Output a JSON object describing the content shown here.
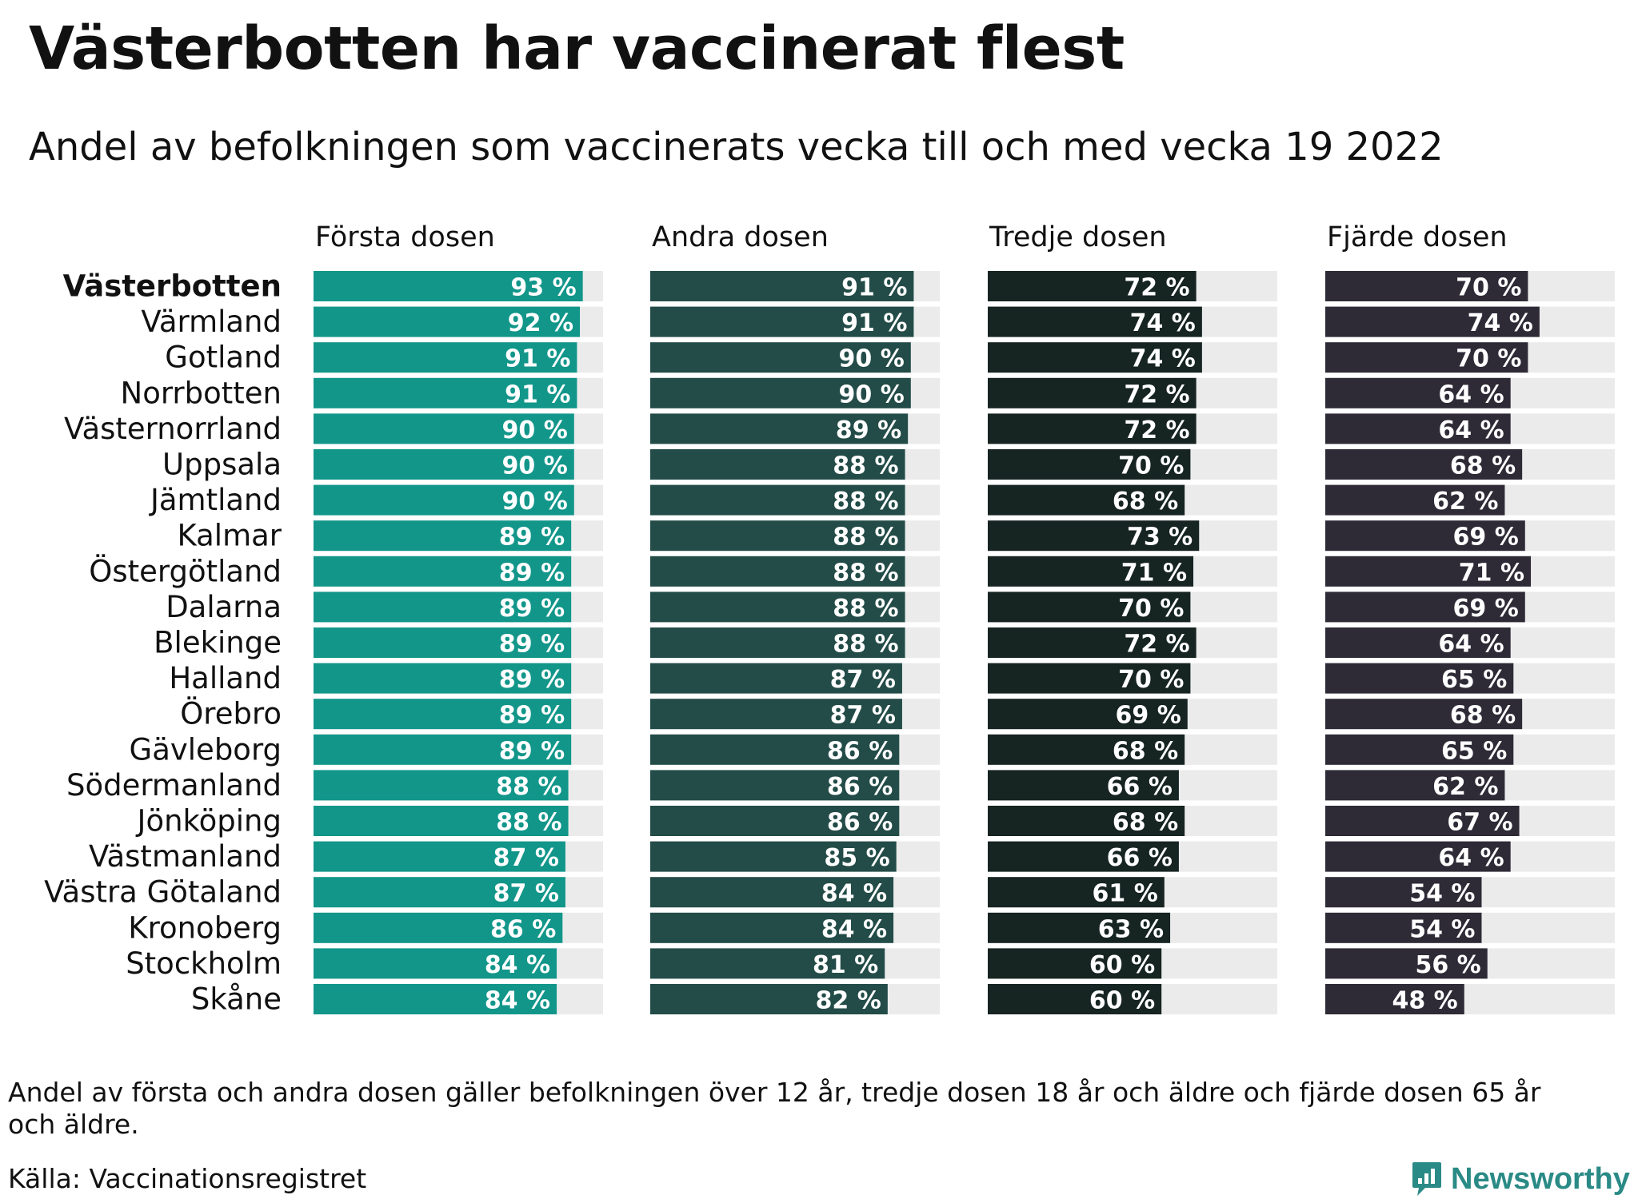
{
  "title": "Västerbotten har vaccinerat flest",
  "subtitle": "Andel av befolkningen som vaccinerats vecka till och med vecka 19 2022",
  "note": "Andel av första och andra dosen gäller befolkningen över 12 år, tredje dosen 18 år och äldre och fjärde dosen 65 år och äldre.",
  "source": "Källa: Vaccinationsregistret",
  "brand": "Newsworthy",
  "colors": {
    "forsta": "#12968a",
    "andra": "#234c48",
    "tredje": "#162422",
    "fjarde": "#2e2b37",
    "track": "#ebebeb",
    "brand": "#2a8a86"
  },
  "chart_data": {
    "type": "bar",
    "orientation": "horizontal",
    "value_suffix": " %",
    "xlim": [
      0,
      100
    ],
    "categories": [
      "Västerbotten",
      "Värmland",
      "Gotland",
      "Norrbotten",
      "Västernorrland",
      "Uppsala",
      "Jämtland",
      "Kalmar",
      "Östergötland",
      "Dalarna",
      "Blekinge",
      "Halland",
      "Örebro",
      "Gävleborg",
      "Södermanland",
      "Jönköping",
      "Västmanland",
      "Västra Götaland",
      "Kronoberg",
      "Stockholm",
      "Skåne"
    ],
    "highlight": "Västerbotten",
    "series": [
      {
        "name": "Första dosen",
        "values": [
          93,
          92,
          91,
          91,
          90,
          90,
          90,
          89,
          89,
          89,
          89,
          89,
          89,
          89,
          88,
          88,
          87,
          87,
          86,
          84,
          84
        ]
      },
      {
        "name": "Andra dosen",
        "values": [
          91,
          91,
          90,
          90,
          89,
          88,
          88,
          88,
          88,
          88,
          88,
          87,
          87,
          86,
          86,
          86,
          85,
          84,
          84,
          81,
          82
        ]
      },
      {
        "name": "Tredje dosen",
        "values": [
          72,
          74,
          74,
          72,
          72,
          70,
          68,
          73,
          71,
          70,
          72,
          70,
          69,
          68,
          66,
          68,
          66,
          61,
          63,
          60,
          60
        ]
      },
      {
        "name": "Fjärde dosen",
        "values": [
          70,
          74,
          70,
          64,
          64,
          68,
          62,
          69,
          71,
          69,
          64,
          65,
          68,
          65,
          62,
          67,
          64,
          54,
          54,
          56,
          48
        ]
      }
    ]
  }
}
